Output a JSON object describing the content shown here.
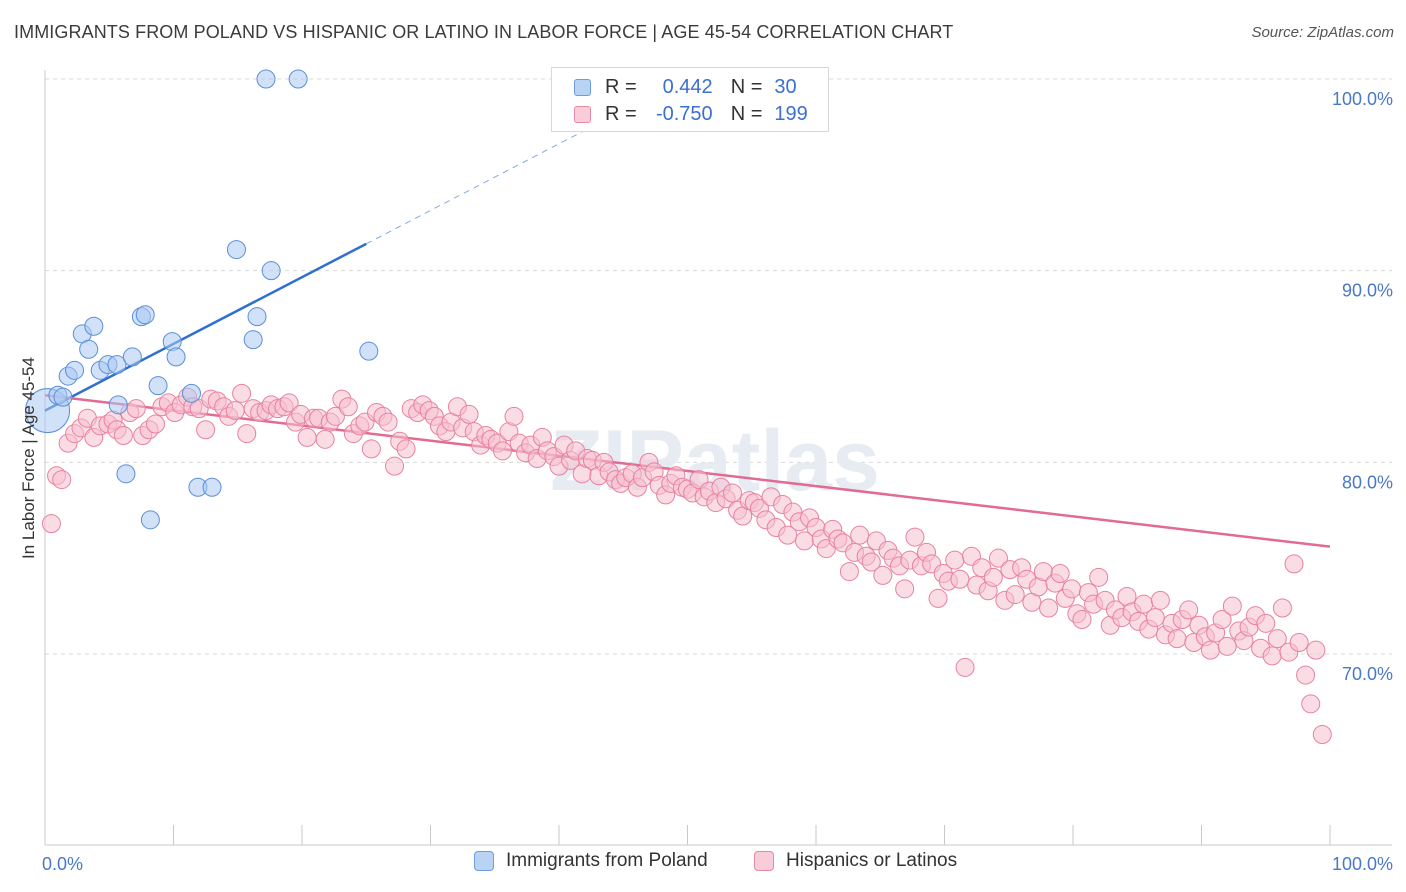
{
  "title": "IMMIGRANTS FROM POLAND VS HISPANIC OR LATINO IN LABOR FORCE | AGE 45-54 CORRELATION CHART",
  "source": "Source: ZipAtlas.com",
  "watermark": "ZIPatlas",
  "legend": {
    "r_label": "R =",
    "n_label": "N =",
    "series": [
      {
        "r": "0.442",
        "n": "30"
      },
      {
        "r": "-0.750",
        "n": "199"
      }
    ]
  },
  "chart_data": {
    "type": "scatter",
    "title": "IMMIGRANTS FROM POLAND VS HISPANIC OR LATINO IN LABOR FORCE | AGE 45-54 CORRELATION CHART",
    "xlabel": "",
    "ylabel": "In Labor Force | Age 45-54",
    "xlim": [
      0,
      100
    ],
    "ylim": [
      59.5,
      101.5
    ],
    "x_tick_labels": [
      "0.0%",
      "100.0%"
    ],
    "y_ticks": [
      70,
      80,
      90,
      100
    ],
    "y_tick_labels": [
      "70.0%",
      "80.0%",
      "90.0%",
      "100.0%"
    ],
    "grid": true,
    "series": [
      {
        "name": "Immigrants from Poland",
        "color": "#a9c8f2",
        "stroke": "#5b8fd8",
        "trend_color": "#2e6fd0",
        "trend": {
          "x0": 0,
          "y0": 82.7,
          "x1": 25,
          "y1": 91.4,
          "dash_to_x": 45
        },
        "points": [
          [
            0.2,
            82.7
          ],
          [
            1.0,
            83.5
          ],
          [
            1.4,
            83.4
          ],
          [
            1.8,
            84.5
          ],
          [
            2.3,
            84.8
          ],
          [
            2.9,
            86.7
          ],
          [
            3.4,
            85.9
          ],
          [
            3.8,
            87.1
          ],
          [
            4.3,
            84.8
          ],
          [
            4.9,
            85.1
          ],
          [
            5.6,
            85.1
          ],
          [
            5.7,
            83.0
          ],
          [
            6.3,
            79.4
          ],
          [
            6.8,
            85.5
          ],
          [
            7.5,
            87.6
          ],
          [
            7.8,
            87.7
          ],
          [
            8.2,
            77.0
          ],
          [
            8.8,
            84.0
          ],
          [
            9.9,
            86.3
          ],
          [
            10.2,
            85.5
          ],
          [
            11.4,
            83.6
          ],
          [
            11.9,
            78.7
          ],
          [
            13.0,
            78.7
          ],
          [
            14.9,
            91.1
          ],
          [
            16.2,
            86.4
          ],
          [
            16.5,
            87.6
          ],
          [
            17.2,
            100.0
          ],
          [
            17.6,
            90.0
          ],
          [
            19.7,
            100.0
          ],
          [
            25.2,
            85.8
          ]
        ]
      },
      {
        "name": "Hispanics or Latinos",
        "color": "#f6bfd0",
        "stroke": "#e8829f",
        "trend_color": "#e26a93",
        "trend": {
          "x0": 0,
          "y0": 83.5,
          "x1": 100,
          "y1": 75.6
        },
        "points": [
          [
            0.5,
            76.8
          ],
          [
            0.9,
            79.3
          ],
          [
            1.3,
            79.1
          ],
          [
            1.8,
            81.0
          ],
          [
            2.3,
            81.5
          ],
          [
            2.8,
            81.8
          ],
          [
            3.3,
            82.3
          ],
          [
            3.8,
            81.3
          ],
          [
            4.3,
            81.9
          ],
          [
            4.9,
            82.0
          ],
          [
            5.3,
            82.2
          ],
          [
            5.6,
            81.7
          ],
          [
            6.1,
            81.4
          ],
          [
            6.6,
            82.6
          ],
          [
            7.1,
            82.8
          ],
          [
            7.6,
            81.4
          ],
          [
            8.1,
            81.7
          ],
          [
            8.6,
            82.0
          ],
          [
            9.1,
            82.9
          ],
          [
            9.6,
            83.1
          ],
          [
            10.1,
            82.6
          ],
          [
            10.6,
            83.0
          ],
          [
            11.1,
            83.4
          ],
          [
            11.5,
            82.9
          ],
          [
            12.0,
            82.8
          ],
          [
            12.5,
            81.7
          ],
          [
            12.9,
            83.3
          ],
          [
            13.4,
            83.2
          ],
          [
            13.9,
            82.9
          ],
          [
            14.3,
            82.4
          ],
          [
            14.8,
            82.7
          ],
          [
            15.3,
            83.6
          ],
          [
            15.7,
            81.5
          ],
          [
            16.2,
            82.8
          ],
          [
            16.7,
            82.6
          ],
          [
            17.2,
            82.7
          ],
          [
            17.6,
            83.0
          ],
          [
            18.1,
            82.8
          ],
          [
            18.6,
            82.9
          ],
          [
            19.0,
            83.1
          ],
          [
            19.5,
            82.1
          ],
          [
            19.9,
            82.5
          ],
          [
            20.4,
            81.3
          ],
          [
            20.9,
            82.3
          ],
          [
            21.3,
            82.3
          ],
          [
            21.8,
            81.2
          ],
          [
            22.2,
            82.1
          ],
          [
            22.6,
            82.4
          ],
          [
            23.1,
            83.3
          ],
          [
            23.6,
            82.9
          ],
          [
            24.0,
            81.5
          ],
          [
            24.5,
            81.9
          ],
          [
            24.9,
            82.1
          ],
          [
            25.4,
            80.7
          ],
          [
            25.8,
            82.6
          ],
          [
            26.3,
            82.4
          ],
          [
            26.7,
            82.1
          ],
          [
            27.2,
            79.8
          ],
          [
            27.6,
            81.1
          ],
          [
            28.1,
            80.7
          ],
          [
            28.5,
            82.8
          ],
          [
            29.0,
            82.6
          ],
          [
            29.4,
            83.0
          ],
          [
            29.9,
            82.7
          ],
          [
            30.3,
            82.4
          ],
          [
            30.7,
            81.9
          ],
          [
            31.2,
            81.6
          ],
          [
            31.6,
            82.1
          ],
          [
            32.1,
            82.9
          ],
          [
            32.5,
            81.8
          ],
          [
            33.0,
            82.5
          ],
          [
            33.4,
            81.6
          ],
          [
            33.9,
            80.9
          ],
          [
            34.3,
            81.4
          ],
          [
            34.7,
            81.2
          ],
          [
            35.2,
            81.0
          ],
          [
            35.6,
            80.6
          ],
          [
            36.1,
            81.6
          ],
          [
            36.5,
            82.4
          ],
          [
            36.9,
            81.0
          ],
          [
            37.4,
            80.5
          ],
          [
            37.8,
            80.9
          ],
          [
            38.3,
            80.2
          ],
          [
            38.7,
            81.3
          ],
          [
            39.1,
            80.6
          ],
          [
            39.6,
            80.3
          ],
          [
            40.0,
            79.8
          ],
          [
            40.4,
            80.9
          ],
          [
            40.9,
            80.1
          ],
          [
            41.3,
            80.6
          ],
          [
            41.8,
            79.4
          ],
          [
            42.2,
            80.2
          ],
          [
            42.6,
            80.1
          ],
          [
            43.1,
            79.3
          ],
          [
            43.5,
            80.0
          ],
          [
            43.9,
            79.5
          ],
          [
            44.4,
            79.1
          ],
          [
            44.8,
            78.9
          ],
          [
            45.2,
            79.2
          ],
          [
            45.7,
            79.4
          ],
          [
            46.1,
            78.7
          ],
          [
            46.5,
            79.2
          ],
          [
            47.0,
            80.0
          ],
          [
            47.4,
            79.5
          ],
          [
            47.8,
            78.8
          ],
          [
            48.3,
            78.3
          ],
          [
            48.7,
            78.9
          ],
          [
            49.1,
            79.3
          ],
          [
            49.6,
            78.7
          ],
          [
            50.0,
            78.6
          ],
          [
            50.4,
            78.4
          ],
          [
            50.9,
            79.1
          ],
          [
            51.3,
            78.2
          ],
          [
            51.7,
            78.5
          ],
          [
            52.2,
            77.9
          ],
          [
            52.6,
            78.7
          ],
          [
            53.0,
            78.1
          ],
          [
            53.5,
            78.4
          ],
          [
            53.9,
            77.5
          ],
          [
            54.3,
            77.2
          ],
          [
            54.8,
            78.0
          ],
          [
            55.2,
            77.9
          ],
          [
            55.6,
            77.6
          ],
          [
            56.1,
            77.0
          ],
          [
            56.5,
            78.2
          ],
          [
            56.9,
            76.6
          ],
          [
            57.4,
            77.8
          ],
          [
            57.8,
            76.2
          ],
          [
            58.2,
            77.4
          ],
          [
            58.7,
            76.9
          ],
          [
            59.1,
            75.9
          ],
          [
            59.5,
            77.1
          ],
          [
            60.0,
            76.6
          ],
          [
            60.4,
            76.0
          ],
          [
            60.8,
            75.5
          ],
          [
            61.3,
            76.5
          ],
          [
            61.7,
            76.0
          ],
          [
            62.1,
            75.8
          ],
          [
            62.6,
            74.3
          ],
          [
            63.0,
            75.3
          ],
          [
            63.4,
            76.2
          ],
          [
            63.9,
            75.1
          ],
          [
            64.3,
            74.8
          ],
          [
            64.7,
            75.9
          ],
          [
            65.2,
            74.1
          ],
          [
            65.6,
            75.4
          ],
          [
            66.0,
            75.0
          ],
          [
            66.5,
            74.6
          ],
          [
            66.9,
            73.4
          ],
          [
            67.3,
            74.9
          ],
          [
            67.7,
            76.1
          ],
          [
            68.2,
            74.6
          ],
          [
            68.6,
            75.3
          ],
          [
            69.0,
            74.7
          ],
          [
            69.5,
            72.9
          ],
          [
            69.9,
            74.2
          ],
          [
            70.3,
            73.8
          ],
          [
            70.8,
            74.9
          ],
          [
            71.2,
            73.9
          ],
          [
            71.6,
            69.3
          ],
          [
            72.1,
            75.1
          ],
          [
            72.5,
            73.6
          ],
          [
            72.9,
            74.5
          ],
          [
            73.4,
            73.3
          ],
          [
            73.8,
            74.0
          ],
          [
            74.2,
            75.0
          ],
          [
            74.7,
            72.8
          ],
          [
            75.1,
            74.4
          ],
          [
            75.5,
            73.1
          ],
          [
            76.0,
            74.5
          ],
          [
            76.4,
            73.9
          ],
          [
            76.8,
            72.7
          ],
          [
            77.3,
            73.5
          ],
          [
            77.7,
            74.3
          ],
          [
            78.1,
            72.4
          ],
          [
            78.6,
            73.7
          ],
          [
            79.0,
            74.2
          ],
          [
            79.4,
            72.9
          ],
          [
            79.9,
            73.4
          ],
          [
            80.3,
            72.1
          ],
          [
            80.7,
            71.8
          ],
          [
            81.2,
            73.2
          ],
          [
            81.6,
            72.6
          ],
          [
            82.0,
            74.0
          ],
          [
            82.5,
            72.8
          ],
          [
            82.9,
            71.5
          ],
          [
            83.3,
            72.3
          ],
          [
            83.8,
            71.9
          ],
          [
            84.2,
            73.0
          ],
          [
            84.6,
            72.2
          ],
          [
            85.1,
            71.7
          ],
          [
            85.5,
            72.6
          ],
          [
            85.9,
            71.3
          ],
          [
            86.4,
            71.9
          ],
          [
            86.8,
            72.8
          ],
          [
            87.2,
            71.0
          ],
          [
            87.7,
            71.6
          ],
          [
            88.1,
            70.8
          ],
          [
            88.5,
            71.8
          ],
          [
            89.0,
            72.3
          ],
          [
            89.4,
            70.6
          ],
          [
            89.8,
            71.5
          ],
          [
            90.3,
            70.9
          ],
          [
            90.7,
            70.2
          ],
          [
            91.1,
            71.1
          ],
          [
            91.6,
            71.8
          ],
          [
            92.0,
            70.4
          ],
          [
            92.4,
            72.5
          ],
          [
            92.9,
            71.2
          ],
          [
            93.3,
            70.7
          ],
          [
            93.7,
            71.4
          ],
          [
            94.2,
            72.0
          ],
          [
            94.6,
            70.3
          ],
          [
            95.0,
            71.6
          ],
          [
            95.5,
            69.9
          ],
          [
            95.9,
            70.8
          ],
          [
            96.3,
            72.4
          ],
          [
            96.8,
            70.1
          ],
          [
            97.2,
            74.7
          ],
          [
            97.6,
            70.6
          ],
          [
            98.1,
            68.9
          ],
          [
            98.5,
            67.4
          ],
          [
            98.9,
            70.2
          ],
          [
            99.4,
            65.8
          ]
        ]
      }
    ]
  },
  "bottom_legend": [
    "Immigrants from Poland",
    "Hispanics or Latinos"
  ]
}
